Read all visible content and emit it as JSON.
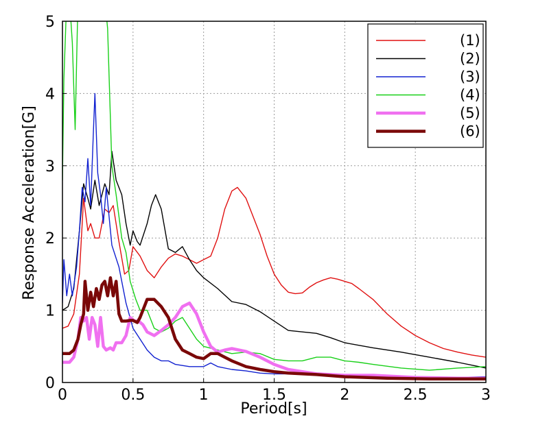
{
  "chart_data": {
    "type": "line",
    "title": "",
    "xlabel": "Period[s]",
    "ylabel": "Response Acceleration[G]",
    "xlim": [
      0,
      3
    ],
    "ylim": [
      0,
      5
    ],
    "xticks": [
      "0",
      "0.5",
      "1",
      "1.5",
      "2",
      "2.5",
      "3"
    ],
    "yticks": [
      "0",
      "1",
      "2",
      "3",
      "4",
      "5"
    ],
    "grid": true,
    "legend_position": "top-right",
    "series": [
      {
        "name": "(1)",
        "color": "#e01010",
        "width": 1.4,
        "points": [
          [
            0,
            0.75
          ],
          [
            0.04,
            0.78
          ],
          [
            0.08,
            0.95
          ],
          [
            0.12,
            1.5
          ],
          [
            0.15,
            2.55
          ],
          [
            0.18,
            2.1
          ],
          [
            0.2,
            2.2
          ],
          [
            0.23,
            2.0
          ],
          [
            0.26,
            2.0
          ],
          [
            0.3,
            2.4
          ],
          [
            0.33,
            2.35
          ],
          [
            0.36,
            2.45
          ],
          [
            0.4,
            1.95
          ],
          [
            0.44,
            1.5
          ],
          [
            0.47,
            1.55
          ],
          [
            0.5,
            1.88
          ],
          [
            0.55,
            1.75
          ],
          [
            0.6,
            1.55
          ],
          [
            0.65,
            1.45
          ],
          [
            0.7,
            1.6
          ],
          [
            0.75,
            1.72
          ],
          [
            0.8,
            1.78
          ],
          [
            0.85,
            1.75
          ],
          [
            0.9,
            1.7
          ],
          [
            0.95,
            1.65
          ],
          [
            1.0,
            1.7
          ],
          [
            1.05,
            1.75
          ],
          [
            1.1,
            2.0
          ],
          [
            1.15,
            2.4
          ],
          [
            1.2,
            2.65
          ],
          [
            1.24,
            2.7
          ],
          [
            1.3,
            2.55
          ],
          [
            1.35,
            2.3
          ],
          [
            1.4,
            2.05
          ],
          [
            1.45,
            1.75
          ],
          [
            1.5,
            1.5
          ],
          [
            1.55,
            1.35
          ],
          [
            1.6,
            1.25
          ],
          [
            1.65,
            1.23
          ],
          [
            1.7,
            1.24
          ],
          [
            1.75,
            1.32
          ],
          [
            1.8,
            1.38
          ],
          [
            1.85,
            1.42
          ],
          [
            1.9,
            1.45
          ],
          [
            1.95,
            1.43
          ],
          [
            2.0,
            1.4
          ],
          [
            2.05,
            1.37
          ],
          [
            2.1,
            1.3
          ],
          [
            2.2,
            1.15
          ],
          [
            2.3,
            0.95
          ],
          [
            2.4,
            0.78
          ],
          [
            2.5,
            0.65
          ],
          [
            2.6,
            0.55
          ],
          [
            2.7,
            0.47
          ],
          [
            2.8,
            0.42
          ],
          [
            2.9,
            0.38
          ],
          [
            3.0,
            0.35
          ]
        ]
      },
      {
        "name": "(2)",
        "color": "#000000",
        "width": 1.4,
        "points": [
          [
            0,
            1.0
          ],
          [
            0.04,
            1.05
          ],
          [
            0.08,
            1.3
          ],
          [
            0.12,
            2.1
          ],
          [
            0.15,
            2.75
          ],
          [
            0.18,
            2.55
          ],
          [
            0.2,
            2.4
          ],
          [
            0.23,
            2.8
          ],
          [
            0.26,
            2.45
          ],
          [
            0.3,
            2.75
          ],
          [
            0.33,
            2.6
          ],
          [
            0.35,
            3.2
          ],
          [
            0.38,
            2.8
          ],
          [
            0.42,
            2.6
          ],
          [
            0.45,
            2.2
          ],
          [
            0.48,
            1.9
          ],
          [
            0.5,
            2.1
          ],
          [
            0.53,
            1.95
          ],
          [
            0.55,
            1.9
          ],
          [
            0.6,
            2.2
          ],
          [
            0.63,
            2.45
          ],
          [
            0.66,
            2.6
          ],
          [
            0.7,
            2.4
          ],
          [
            0.75,
            1.85
          ],
          [
            0.8,
            1.8
          ],
          [
            0.85,
            1.88
          ],
          [
            0.9,
            1.7
          ],
          [
            0.95,
            1.55
          ],
          [
            1.0,
            1.45
          ],
          [
            1.1,
            1.3
          ],
          [
            1.2,
            1.12
          ],
          [
            1.3,
            1.08
          ],
          [
            1.4,
            0.98
          ],
          [
            1.5,
            0.85
          ],
          [
            1.6,
            0.72
          ],
          [
            1.7,
            0.7
          ],
          [
            1.8,
            0.68
          ],
          [
            1.9,
            0.62
          ],
          [
            2.0,
            0.55
          ],
          [
            2.2,
            0.48
          ],
          [
            2.4,
            0.42
          ],
          [
            2.6,
            0.35
          ],
          [
            2.8,
            0.28
          ],
          [
            3.0,
            0.2
          ]
        ]
      },
      {
        "name": "(3)",
        "color": "#1020d0",
        "width": 1.4,
        "points": [
          [
            0,
            1.1
          ],
          [
            0.01,
            1.7
          ],
          [
            0.03,
            1.2
          ],
          [
            0.05,
            1.5
          ],
          [
            0.07,
            1.2
          ],
          [
            0.1,
            1.6
          ],
          [
            0.12,
            2.1
          ],
          [
            0.14,
            2.7
          ],
          [
            0.16,
            2.5
          ],
          [
            0.18,
            3.1
          ],
          [
            0.2,
            2.45
          ],
          [
            0.22,
            3.5
          ],
          [
            0.23,
            4.0
          ],
          [
            0.25,
            2.9
          ],
          [
            0.27,
            2.6
          ],
          [
            0.29,
            2.2
          ],
          [
            0.31,
            2.7
          ],
          [
            0.33,
            2.3
          ],
          [
            0.35,
            1.9
          ],
          [
            0.4,
            1.6
          ],
          [
            0.45,
            1.1
          ],
          [
            0.5,
            0.75
          ],
          [
            0.55,
            0.6
          ],
          [
            0.6,
            0.45
          ],
          [
            0.65,
            0.35
          ],
          [
            0.7,
            0.3
          ],
          [
            0.75,
            0.3
          ],
          [
            0.8,
            0.25
          ],
          [
            0.9,
            0.22
          ],
          [
            1.0,
            0.22
          ],
          [
            1.05,
            0.27
          ],
          [
            1.1,
            0.22
          ],
          [
            1.2,
            0.18
          ],
          [
            1.3,
            0.16
          ],
          [
            1.4,
            0.13
          ],
          [
            1.5,
            0.12
          ],
          [
            1.7,
            0.12
          ],
          [
            1.9,
            0.1
          ],
          [
            2.0,
            0.09
          ],
          [
            2.2,
            0.08
          ],
          [
            2.5,
            0.07
          ],
          [
            2.8,
            0.07
          ],
          [
            3.0,
            0.08
          ]
        ]
      },
      {
        "name": "(4)",
        "color": "#18d018",
        "width": 1.4,
        "points": [
          [
            0,
            2.8
          ],
          [
            0.01,
            4.2
          ],
          [
            0.03,
            5.3
          ],
          [
            0.05,
            5.3
          ],
          [
            0.07,
            4.7
          ],
          [
            0.09,
            3.5
          ],
          [
            0.11,
            5.3
          ],
          [
            0.13,
            5.3
          ],
          [
            0.15,
            5.3
          ],
          [
            0.3,
            5.3
          ],
          [
            0.32,
            4.9
          ],
          [
            0.35,
            3.0
          ],
          [
            0.38,
            2.6
          ],
          [
            0.4,
            2.3
          ],
          [
            0.42,
            2.0
          ],
          [
            0.45,
            1.8
          ],
          [
            0.48,
            1.4
          ],
          [
            0.52,
            1.15
          ],
          [
            0.55,
            1.0
          ],
          [
            0.6,
            1.0
          ],
          [
            0.65,
            0.75
          ],
          [
            0.7,
            0.7
          ],
          [
            0.75,
            0.75
          ],
          [
            0.8,
            0.85
          ],
          [
            0.85,
            0.9
          ],
          [
            0.9,
            0.75
          ],
          [
            0.95,
            0.6
          ],
          [
            1.0,
            0.5
          ],
          [
            1.1,
            0.45
          ],
          [
            1.2,
            0.4
          ],
          [
            1.3,
            0.42
          ],
          [
            1.4,
            0.4
          ],
          [
            1.5,
            0.32
          ],
          [
            1.6,
            0.3
          ],
          [
            1.7,
            0.3
          ],
          [
            1.8,
            0.35
          ],
          [
            1.9,
            0.35
          ],
          [
            2.0,
            0.3
          ],
          [
            2.1,
            0.28
          ],
          [
            2.2,
            0.25
          ],
          [
            2.4,
            0.2
          ],
          [
            2.6,
            0.17
          ],
          [
            2.8,
            0.2
          ],
          [
            3.0,
            0.22
          ]
        ]
      },
      {
        "name": "(5)",
        "color": "#f070f0",
        "width": 4.5,
        "points": [
          [
            0,
            0.28
          ],
          [
            0.05,
            0.28
          ],
          [
            0.08,
            0.35
          ],
          [
            0.11,
            0.6
          ],
          [
            0.13,
            0.9
          ],
          [
            0.15,
            0.85
          ],
          [
            0.17,
            0.9
          ],
          [
            0.19,
            0.6
          ],
          [
            0.21,
            0.9
          ],
          [
            0.23,
            0.8
          ],
          [
            0.25,
            0.5
          ],
          [
            0.27,
            0.9
          ],
          [
            0.29,
            0.5
          ],
          [
            0.31,
            0.45
          ],
          [
            0.34,
            0.48
          ],
          [
            0.36,
            0.45
          ],
          [
            0.38,
            0.55
          ],
          [
            0.42,
            0.55
          ],
          [
            0.45,
            0.65
          ],
          [
            0.48,
            0.9
          ],
          [
            0.51,
            0.85
          ],
          [
            0.54,
            0.85
          ],
          [
            0.57,
            0.8
          ],
          [
            0.6,
            0.7
          ],
          [
            0.65,
            0.65
          ],
          [
            0.7,
            0.72
          ],
          [
            0.75,
            0.8
          ],
          [
            0.8,
            0.9
          ],
          [
            0.85,
            1.05
          ],
          [
            0.9,
            1.1
          ],
          [
            0.95,
            0.95
          ],
          [
            1.0,
            0.7
          ],
          [
            1.05,
            0.5
          ],
          [
            1.1,
            0.42
          ],
          [
            1.15,
            0.45
          ],
          [
            1.2,
            0.47
          ],
          [
            1.3,
            0.43
          ],
          [
            1.4,
            0.35
          ],
          [
            1.5,
            0.25
          ],
          [
            1.6,
            0.18
          ],
          [
            1.7,
            0.15
          ],
          [
            1.8,
            0.12
          ],
          [
            2.0,
            0.1
          ],
          [
            2.2,
            0.1
          ],
          [
            2.5,
            0.07
          ],
          [
            2.8,
            0.06
          ],
          [
            3.0,
            0.06
          ]
        ]
      },
      {
        "name": "(6)",
        "color": "#7a0808",
        "width": 4.5,
        "points": [
          [
            0,
            0.4
          ],
          [
            0.05,
            0.4
          ],
          [
            0.08,
            0.45
          ],
          [
            0.11,
            0.6
          ],
          [
            0.13,
            0.8
          ],
          [
            0.15,
            0.95
          ],
          [
            0.16,
            1.4
          ],
          [
            0.18,
            1.0
          ],
          [
            0.2,
            1.25
          ],
          [
            0.22,
            1.05
          ],
          [
            0.24,
            1.3
          ],
          [
            0.26,
            1.15
          ],
          [
            0.28,
            1.35
          ],
          [
            0.3,
            1.4
          ],
          [
            0.32,
            1.2
          ],
          [
            0.34,
            1.45
          ],
          [
            0.36,
            1.2
          ],
          [
            0.38,
            1.4
          ],
          [
            0.4,
            0.95
          ],
          [
            0.42,
            0.85
          ],
          [
            0.45,
            0.85
          ],
          [
            0.48,
            0.86
          ],
          [
            0.5,
            0.86
          ],
          [
            0.53,
            0.83
          ],
          [
            0.55,
            0.9
          ],
          [
            0.58,
            1.05
          ],
          [
            0.6,
            1.15
          ],
          [
            0.65,
            1.15
          ],
          [
            0.7,
            1.05
          ],
          [
            0.75,
            0.9
          ],
          [
            0.8,
            0.6
          ],
          [
            0.85,
            0.45
          ],
          [
            0.9,
            0.4
          ],
          [
            0.95,
            0.35
          ],
          [
            1.0,
            0.33
          ],
          [
            1.05,
            0.4
          ],
          [
            1.1,
            0.4
          ],
          [
            1.15,
            0.35
          ],
          [
            1.2,
            0.3
          ],
          [
            1.3,
            0.22
          ],
          [
            1.4,
            0.18
          ],
          [
            1.5,
            0.15
          ],
          [
            1.6,
            0.13
          ],
          [
            1.8,
            0.11
          ],
          [
            2.0,
            0.08
          ],
          [
            2.3,
            0.06
          ],
          [
            2.6,
            0.05
          ],
          [
            3.0,
            0.05
          ]
        ]
      }
    ]
  }
}
